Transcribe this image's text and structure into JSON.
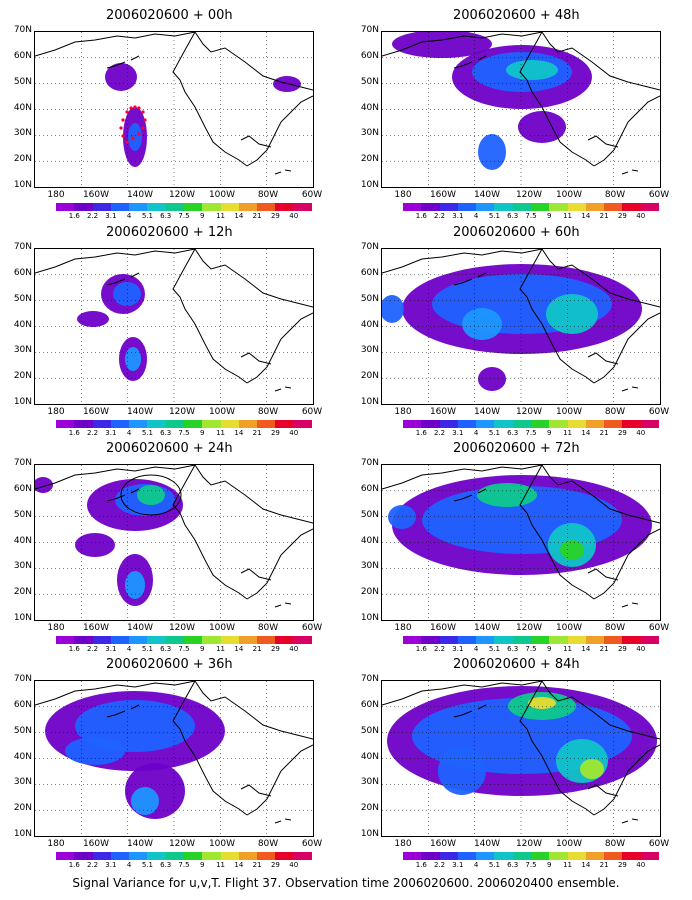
{
  "panels": [
    {
      "title": "2006020600 + 00h"
    },
    {
      "title": "2006020600 + 48h"
    },
    {
      "title": "2006020600 + 12h"
    },
    {
      "title": "2006020600 + 60h"
    },
    {
      "title": "2006020600 + 24h"
    },
    {
      "title": "2006020600 + 72h"
    },
    {
      "title": "2006020600 + 36h"
    },
    {
      "title": "2006020600 + 84h"
    }
  ],
  "lat_labels": [
    "70N",
    "60N",
    "50N",
    "40N",
    "30N",
    "20N",
    "10N"
  ],
  "lon_labels": [
    "180",
    "160W",
    "140W",
    "120W",
    "100W",
    "80W",
    "60W"
  ],
  "colorbar": {
    "values": [
      "1.6",
      "2.2",
      "3.1",
      "4",
      "5.1",
      "6.3",
      "7.5",
      "9",
      "11",
      "14",
      "21",
      "29",
      "40"
    ],
    "colors": [
      "#9b00d8",
      "#6e00c8",
      "#3c28e6",
      "#1f62ff",
      "#1e96ff",
      "#10c4c8",
      "#10c88c",
      "#28d228",
      "#a0e632",
      "#e6dc32",
      "#f0a028",
      "#f05a1e",
      "#e6002a",
      "#d80064"
    ]
  },
  "footer": "Signal Variance for u,v,T. Flight 37. Observation time 2006020600. 2006020400 ensemble."
}
